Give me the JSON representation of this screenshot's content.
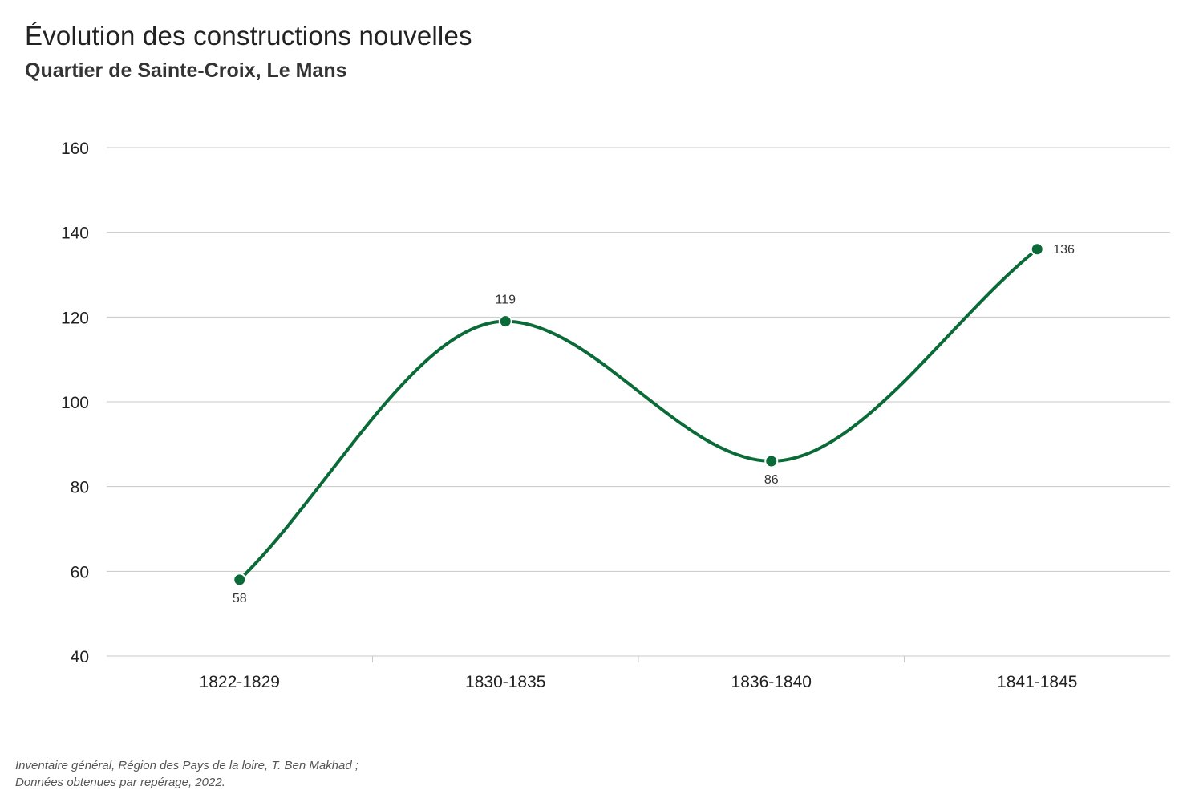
{
  "header": {
    "title": "Évolution des constructions nouvelles",
    "subtitle": "Quartier de Sainte-Croix, Le Mans"
  },
  "source": {
    "line1": "Inventaire général, Région des Pays de la loire, T. Ben Makhad ;",
    "line2": "Données obtenues par repérage, 2022."
  },
  "colors": {
    "series": "#0b6b38",
    "grid": "#c8c8c8",
    "text": "#222222"
  },
  "chart_data": {
    "type": "line",
    "title": "Évolution des constructions nouvelles",
    "subtitle": "Quartier de Sainte-Croix, Le Mans",
    "categories": [
      "1822-1829",
      "1830-1835",
      "1836-1840",
      "1841-1845"
    ],
    "series": [
      {
        "values": [
          58,
          119,
          86,
          136
        ]
      }
    ],
    "xlabel": "",
    "ylabel": "",
    "ylim": [
      40,
      160
    ],
    "yticks": [
      40,
      60,
      80,
      100,
      120,
      140,
      160
    ],
    "grid": true,
    "smooth": true,
    "data_labels": true
  }
}
